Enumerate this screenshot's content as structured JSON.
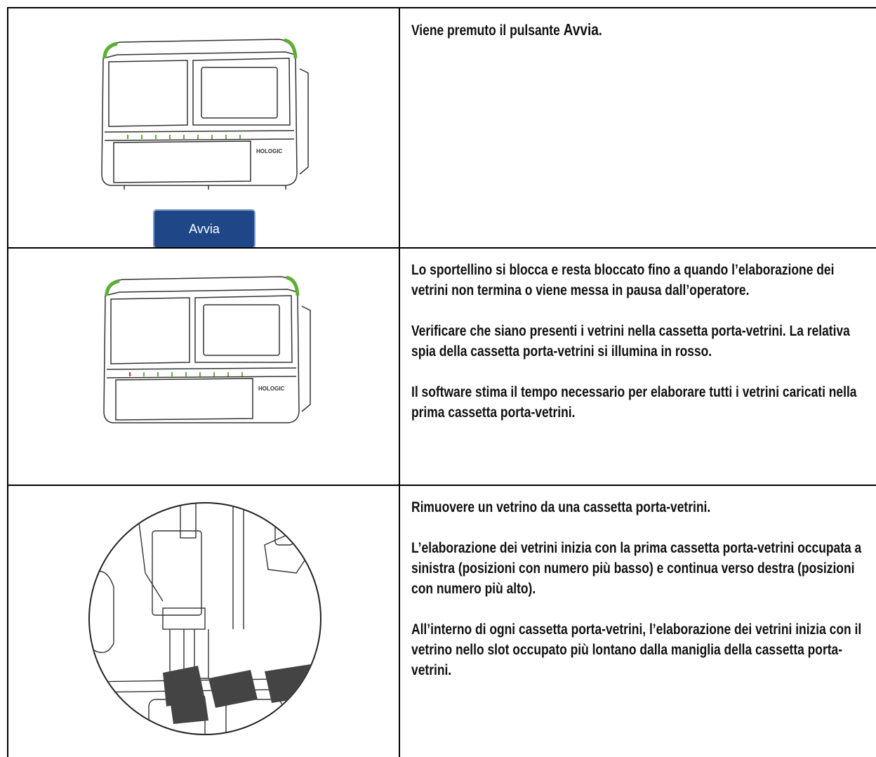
{
  "rows": [
    {
      "image": {
        "brand": "HOLOGIC",
        "button": "Avvia"
      },
      "paragraphs": [
        [
          "Viene premuto il pulsante ",
          "Avvia",
          "."
        ]
      ]
    },
    {
      "image": {
        "brand": "HOLOGIC"
      },
      "paragraphs": [
        [
          "Lo sportellino si blocca e resta bloccato fino a quando l’elaborazione dei vetrini non termina o viene messa in pausa dall’operatore."
        ],
        [
          "Verificare che siano presenti i vetrini nella cassetta porta-vetrini. La relativa spia della cassetta porta-vetrini si illumina in rosso."
        ],
        [
          "Il software stima il tempo necessario per elaborare tutti i vetrini caricati nella prima cassetta porta-vetrini."
        ]
      ]
    },
    {
      "paragraphs": [
        [
          "Rimuovere un vetrino da una cassetta porta-vetrini."
        ],
        [
          "L’elaborazione dei vetrini inizia con la prima cassetta porta-vetrini occupata a sinistra (posizioni con numero più basso) e continua verso destra (posizioni con numero più alto)."
        ],
        [
          "All’interno di ogni cassetta porta-vetrini, l’elaborazione dei vetrini inizia con il vetrino nello slot occupato più lontano dalla maniglia della cassetta porta-vetrini."
        ]
      ]
    }
  ]
}
